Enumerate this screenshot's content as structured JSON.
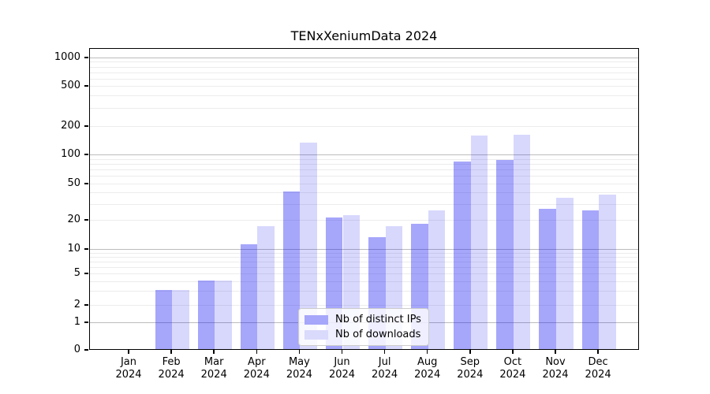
{
  "chart_data": {
    "type": "bar",
    "title": "TENxXeniumData 2024",
    "scale": "symlog",
    "xlabel": "",
    "ylabel": "",
    "year": "2024",
    "categories": [
      "Jan",
      "Feb",
      "Mar",
      "Apr",
      "May",
      "Jun",
      "Jul",
      "Aug",
      "Sep",
      "Oct",
      "Nov",
      "Dec"
    ],
    "series": [
      {
        "name": "Nb of distinct IPs",
        "color": "#a6a6fa",
        "base_color": "#0808f4",
        "alpha": 0.36,
        "values": [
          0,
          3,
          4,
          11,
          40,
          21,
          13,
          18,
          83,
          86,
          26,
          25
        ]
      },
      {
        "name": "Nb of downloads",
        "color": "#dadafc",
        "base_color": "#0808f4",
        "alpha": 0.155,
        "values": [
          0,
          3,
          4,
          17,
          130,
          22,
          17,
          25,
          155,
          160,
          34,
          37
        ]
      }
    ],
    "y_ticks": [
      0,
      1,
      2,
      5,
      10,
      20,
      50,
      100,
      200,
      500,
      1000
    ],
    "ylim": [
      0,
      1260
    ],
    "grid": "on",
    "legend_position": "lower center",
    "colors": {
      "major_grid": "#bcbcbc",
      "minor_grid": "#ececec",
      "axis": "#000000",
      "text": "#000000",
      "background": "#ffffff"
    }
  }
}
